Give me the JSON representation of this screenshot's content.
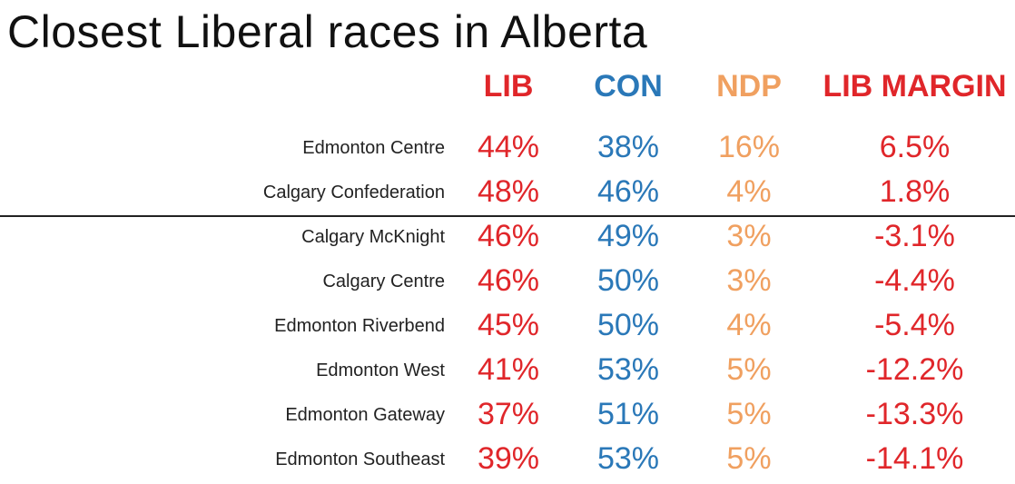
{
  "title": "Closest Liberal races in Alberta",
  "colors": {
    "lib": "#e0262a",
    "con": "#2a78b8",
    "ndp": "#f0a060",
    "margin": "#e0262a",
    "text": "#222222",
    "rule": "#222222"
  },
  "chart_data": {
    "type": "table",
    "title": "Closest Liberal races in Alberta",
    "columns": [
      "LIB",
      "CON",
      "NDP",
      "LIB MARGIN"
    ],
    "divider_after_row": 2,
    "rows": [
      {
        "riding": "Edmonton Centre",
        "lib": "44%",
        "con": "38%",
        "ndp": "16%",
        "margin": "6.5%"
      },
      {
        "riding": "Calgary Confederation",
        "lib": "48%",
        "con": "46%",
        "ndp": "4%",
        "margin": "1.8%"
      },
      {
        "riding": "Calgary McKnight",
        "lib": "46%",
        "con": "49%",
        "ndp": "3%",
        "margin": "-3.1%"
      },
      {
        "riding": "Calgary Centre",
        "lib": "46%",
        "con": "50%",
        "ndp": "3%",
        "margin": "-4.4%"
      },
      {
        "riding": "Edmonton Riverbend",
        "lib": "45%",
        "con": "50%",
        "ndp": "4%",
        "margin": "-5.4%"
      },
      {
        "riding": "Edmonton West",
        "lib": "41%",
        "con": "53%",
        "ndp": "5%",
        "margin": "-12.2%"
      },
      {
        "riding": "Edmonton Gateway",
        "lib": "37%",
        "con": "51%",
        "ndp": "5%",
        "margin": "-13.3%"
      },
      {
        "riding": "Edmonton Southeast",
        "lib": "39%",
        "con": "53%",
        "ndp": "5%",
        "margin": "-14.1%"
      }
    ]
  }
}
